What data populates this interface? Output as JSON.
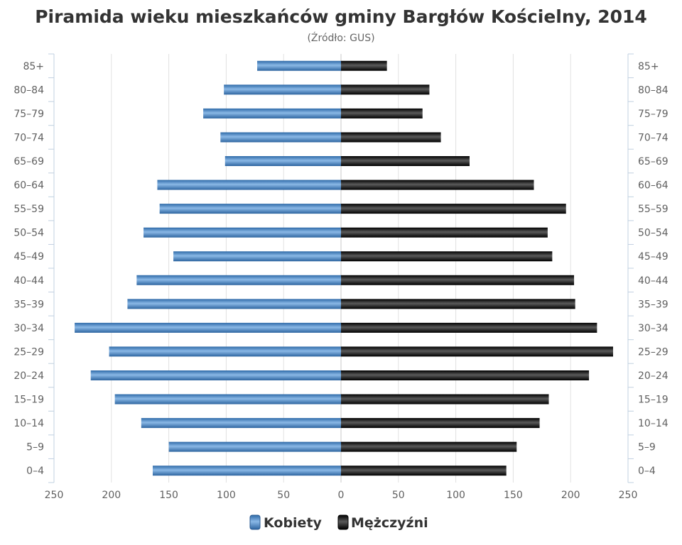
{
  "chart_data": {
    "type": "bar",
    "orientation": "horizontal-population-pyramid",
    "title": "Piramida wieku mieszkańców gminy Bargłów Kościelny, 2014",
    "subtitle": "(Źródło: GUS)",
    "categories": [
      "85+",
      "80–84",
      "75–79",
      "70–74",
      "65–69",
      "60–64",
      "55–59",
      "50–54",
      "45–49",
      "40–44",
      "35–39",
      "30–34",
      "25–29",
      "20–24",
      "15–19",
      "10–14",
      "5–9",
      "0–4"
    ],
    "series": [
      {
        "name": "Kobiety",
        "color": "#4a86c5",
        "side": "left",
        "values": [
          73,
          102,
          120,
          105,
          101,
          160,
          158,
          172,
          146,
          178,
          186,
          232,
          202,
          218,
          197,
          174,
          150,
          164
        ]
      },
      {
        "name": "Mężczyźni",
        "color": "#1a1a1a",
        "side": "right",
        "values": [
          40,
          77,
          71,
          87,
          112,
          168,
          196,
          180,
          184,
          203,
          204,
          223,
          237,
          216,
          181,
          173,
          153,
          144
        ]
      }
    ],
    "x_ticks": [
      "250",
      "200",
      "150",
      "100",
      "50",
      "0",
      "50",
      "100",
      "150",
      "200",
      "250"
    ],
    "xlim": [
      -250,
      250
    ],
    "grid": true,
    "legend_position": "bottom-center"
  }
}
